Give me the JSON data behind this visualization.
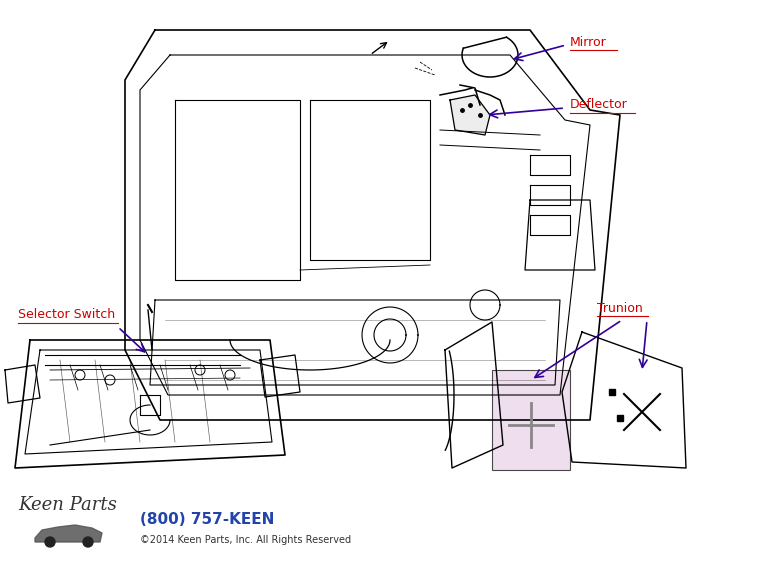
{
  "background_color": "#ffffff",
  "labels": {
    "mirror": "Mirror",
    "deflector": "Deflector",
    "selector_switch": "Selector Switch",
    "trunion": "Trunion"
  },
  "label_color": "#cc0000",
  "arrow_color": "#330099",
  "line_color": "#000000",
  "phone_text": "(800) 757-KEEN",
  "phone_color": "#2244aa",
  "copyright_text": "©2014 Keen Parts, Inc. All Rights Reserved",
  "copyright_color": "#333333",
  "trunion_fill": "#e8d0e8",
  "logo_text": "Keen Parts"
}
